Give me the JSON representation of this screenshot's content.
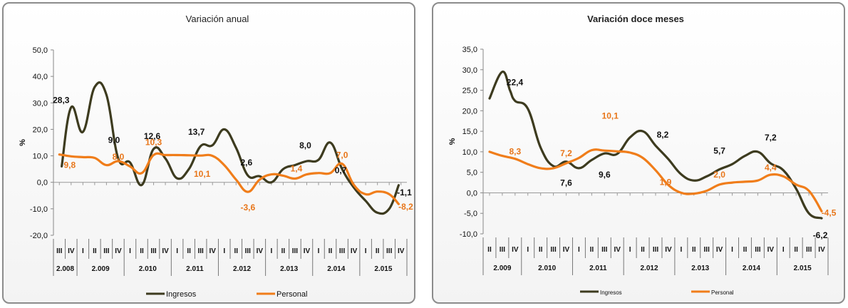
{
  "colors": {
    "ingresos": "#3d3b1f",
    "personal": "#f07d1a",
    "ingresos_label": "#111111",
    "personal_label": "#e8761a"
  },
  "chart_data": [
    {
      "type": "line",
      "title": "Variación anual",
      "ylabel": "%",
      "ylim": [
        -20,
        50
      ],
      "y_ticks": [
        "50,0",
        "40,0",
        "30,0",
        "20,0",
        "10,0",
        "0,0",
        "-10,0",
        "-20,0"
      ],
      "y_tick_values": [
        50,
        40,
        30,
        20,
        10,
        0,
        -10,
        -20
      ],
      "quarters": [
        "III",
        "IV",
        "I",
        "II",
        "III",
        "IV",
        "I",
        "II",
        "III",
        "IV",
        "I",
        "II",
        "III",
        "IV",
        "I",
        "II",
        "III",
        "IV",
        "I",
        "II",
        "III",
        "IV",
        "I",
        "II",
        "III",
        "IV",
        "I",
        "II",
        "III",
        "IV"
      ],
      "years": [
        {
          "label": "2.008",
          "span": 2
        },
        {
          "label": "2.009",
          "span": 4
        },
        {
          "label": "2.010",
          "span": 4
        },
        {
          "label": "2.011",
          "span": 4
        },
        {
          "label": "2.012",
          "span": 4
        },
        {
          "label": "2.013",
          "span": 4
        },
        {
          "label": "2.014",
          "span": 4
        },
        {
          "label": "2.015",
          "span": 4
        }
      ],
      "series": [
        {
          "name": "Ingresos",
          "color": "#3d3b1f",
          "points": [
            [
              0.2,
              6
            ],
            [
              1,
              28.3
            ],
            [
              2,
              19
            ],
            [
              3,
              36
            ],
            [
              4,
              33
            ],
            [
              5,
              9
            ],
            [
              6,
              7.5
            ],
            [
              7,
              -1
            ],
            [
              8,
              12.6
            ],
            [
              9,
              9
            ],
            [
              10,
              1.5
            ],
            [
              11,
              5
            ],
            [
              12,
              13.7
            ],
            [
              13,
              14
            ],
            [
              14,
              20
            ],
            [
              15,
              13
            ],
            [
              16,
              2.6
            ],
            [
              17,
              2.3
            ],
            [
              18,
              0
            ],
            [
              19,
              5
            ],
            [
              20,
              6.5
            ],
            [
              21,
              8
            ],
            [
              22,
              8.5
            ],
            [
              23,
              15
            ],
            [
              24,
              5
            ],
            [
              25,
              -2
            ],
            [
              26,
              -7
            ],
            [
              27,
              -11.5
            ],
            [
              28,
              -10
            ],
            [
              28.8,
              -1.1
            ]
          ],
          "labels": [
            {
              "text": "28,3",
              "x": 1,
              "y": 28.3,
              "dx": -14,
              "dy": -10
            },
            {
              "text": "9,0",
              "x": 5,
              "y": 9,
              "dx": -6,
              "dy": -26
            },
            {
              "text": "12,6",
              "x": 8,
              "y": 12.6,
              "dx": -2,
              "dy": -18
            },
            {
              "text": "13,7",
              "x": 12,
              "y": 13.7,
              "dx": -6,
              "dy": -20
            },
            {
              "text": "2,6",
              "x": 16,
              "y": 2.6,
              "dx": -2,
              "dy": -18
            },
            {
              "text": "8,0",
              "x": 21,
              "y": 8,
              "dx": -2,
              "dy": -22
            },
            {
              "text": "0,7",
              "x": 24,
              "y": 0.7,
              "dx": -2,
              "dy": -14
            },
            {
              "text": "-1,1",
              "x": 28.8,
              "y": -1.1,
              "dx": 8,
              "dy": 10
            }
          ]
        },
        {
          "name": "Personal",
          "color": "#f07d1a",
          "points": [
            [
              0,
              10.5
            ],
            [
              1,
              9.8
            ],
            [
              2,
              9.5
            ],
            [
              3,
              9.2
            ],
            [
              4,
              6.5
            ],
            [
              5,
              8
            ],
            [
              6,
              6
            ],
            [
              7,
              3.5
            ],
            [
              8,
              10.3
            ],
            [
              9,
              10.3
            ],
            [
              10,
              10.3
            ],
            [
              11,
              10.2
            ],
            [
              12,
              10.1
            ],
            [
              13,
              10
            ],
            [
              14,
              6.5
            ],
            [
              15,
              1
            ],
            [
              16,
              -3.6
            ],
            [
              17,
              1
            ],
            [
              18,
              3
            ],
            [
              19,
              2.5
            ],
            [
              20,
              1.4
            ],
            [
              21,
              3
            ],
            [
              22,
              3.5
            ],
            [
              23,
              3.5
            ],
            [
              24,
              7
            ],
            [
              25,
              -1
            ],
            [
              26,
              -4.5
            ],
            [
              27,
              -3.5
            ],
            [
              28,
              -4.5
            ],
            [
              28.8,
              -8.2
            ]
          ],
          "labels": [
            {
              "text": "9,8",
              "x": 1,
              "y": 9.8,
              "dx": -2,
              "dy": 12
            },
            {
              "text": "8,0",
              "x": 5,
              "y": 8,
              "dx": 0,
              "dy": -6
            },
            {
              "text": "10,3",
              "x": 8,
              "y": 10.3,
              "dx": 0,
              "dy": -18
            },
            {
              "text": "10,1",
              "x": 12,
              "y": 10.1,
              "dx": 2,
              "dy": 26
            },
            {
              "text": "-3,6",
              "x": 16,
              "y": -3.6,
              "dx": 0,
              "dy": 22
            },
            {
              "text": "1,4",
              "x": 20,
              "y": 1.4,
              "dx": 2,
              "dy": -14
            },
            {
              "text": "7,0",
              "x": 24,
              "y": 7,
              "dx": 0,
              "dy": -12
            },
            {
              "text": "-8,2",
              "x": 28.8,
              "y": -8.2,
              "dx": 10,
              "dy": 4
            }
          ]
        }
      ]
    },
    {
      "type": "line",
      "title": "Variación doce meses",
      "ylabel": "%",
      "ylim": [
        -10,
        35
      ],
      "y_ticks": [
        "35,0",
        "30,0",
        "25,0",
        "20,0",
        "15,0",
        "10,0",
        "5,0",
        "0,0",
        "-5,0",
        "-10,0"
      ],
      "y_tick_values": [
        35,
        30,
        25,
        20,
        15,
        10,
        5,
        0,
        -5,
        -10
      ],
      "quarters": [
        "II",
        "III",
        "IV",
        "I",
        "II",
        "III",
        "IV",
        "I",
        "II",
        "III",
        "IV",
        "I",
        "II",
        "III",
        "IV",
        "I",
        "II",
        "III",
        "IV",
        "I",
        "II",
        "III",
        "IV",
        "I",
        "II",
        "III",
        "IV"
      ],
      "years": [
        {
          "label": "2.009",
          "span": 3
        },
        {
          "label": "2.010",
          "span": 4
        },
        {
          "label": "2.011",
          "span": 4
        },
        {
          "label": "2.012",
          "span": 4
        },
        {
          "label": "2.013",
          "span": 4
        },
        {
          "label": "2.014",
          "span": 4
        },
        {
          "label": "2.015",
          "span": 4
        }
      ],
      "series": [
        {
          "name": "Ingresos",
          "color": "#3d3b1f",
          "points": [
            [
              0,
              23
            ],
            [
              1,
              29.5
            ],
            [
              1.6,
              25
            ],
            [
              2,
              22.4
            ],
            [
              3,
              20.5
            ],
            [
              4,
              11
            ],
            [
              5,
              6.5
            ],
            [
              6,
              7.6
            ],
            [
              7,
              6
            ],
            [
              8,
              8
            ],
            [
              9,
              9.6
            ],
            [
              10,
              9.5
            ],
            [
              11,
              13.5
            ],
            [
              12,
              15
            ],
            [
              13,
              11.5
            ],
            [
              14,
              8.2
            ],
            [
              15,
              4.5
            ],
            [
              16,
              3
            ],
            [
              17,
              4
            ],
            [
              18,
              5.7
            ],
            [
              19,
              7
            ],
            [
              20,
              9
            ],
            [
              21,
              10
            ],
            [
              22,
              7.2
            ],
            [
              23,
              5.5
            ],
            [
              24,
              1
            ],
            [
              25,
              -5
            ],
            [
              26,
              -6.2
            ]
          ],
          "labels": [
            {
              "text": "22,4",
              "x": 1.2,
              "y": 29,
              "dx": 14,
              "dy": 12
            },
            {
              "text": "7,6",
              "x": 6,
              "y": 7.6,
              "dx": 0,
              "dy": 30
            },
            {
              "text": "9,6",
              "x": 9,
              "y": 9.6,
              "dx": 0,
              "dy": 30
            },
            {
              "text": "8,2",
              "x": 14,
              "y": 8.2,
              "dx": -8,
              "dy": -34
            },
            {
              "text": "5,7",
              "x": 18,
              "y": 5.7,
              "dx": 0,
              "dy": -26
            },
            {
              "text": "7,2",
              "x": 22,
              "y": 7.2,
              "dx": 0,
              "dy": -36
            },
            {
              "text": "-6,2",
              "x": 26,
              "y": -6.2,
              "dx": -2,
              "dy": 24
            }
          ]
        },
        {
          "name": "Personal",
          "color": "#f07d1a",
          "points": [
            [
              0,
              10
            ],
            [
              1,
              9
            ],
            [
              2,
              8.3
            ],
            [
              3,
              7
            ],
            [
              4,
              6
            ],
            [
              5,
              6
            ],
            [
              6,
              7.2
            ],
            [
              7,
              8.5
            ],
            [
              8,
              10.4
            ],
            [
              9,
              10.3
            ],
            [
              10,
              10.1
            ],
            [
              11,
              9.8
            ],
            [
              12,
              8.5
            ],
            [
              13,
              5.5
            ],
            [
              14,
              1.9
            ],
            [
              15,
              0
            ],
            [
              16,
              -0.2
            ],
            [
              17,
              0.5
            ],
            [
              18,
              2
            ],
            [
              19,
              2.5
            ],
            [
              20,
              2.7
            ],
            [
              21,
              3
            ],
            [
              22,
              4.4
            ],
            [
              23,
              4
            ],
            [
              24,
              2
            ],
            [
              25,
              0.5
            ],
            [
              26,
              -4.5
            ]
          ],
          "labels": [
            {
              "text": "8,3",
              "x": 2,
              "y": 8.3,
              "dx": 0,
              "dy": -10
            },
            {
              "text": "7,2",
              "x": 6,
              "y": 7.2,
              "dx": 0,
              "dy": -14
            },
            {
              "text": "10,1",
              "x": 10,
              "y": 10.1,
              "dx": -10,
              "dy": -50
            },
            {
              "text": "1,9",
              "x": 14,
              "y": 1.9,
              "dx": -4,
              "dy": -4
            },
            {
              "text": "2,0",
              "x": 18,
              "y": 2,
              "dx": 0,
              "dy": -14
            },
            {
              "text": "4,4",
              "x": 22,
              "y": 4.4,
              "dx": 0,
              "dy": -10
            },
            {
              "text": "-4,5",
              "x": 26,
              "y": -4.5,
              "dx": 10,
              "dy": 2
            }
          ]
        }
      ]
    }
  ]
}
